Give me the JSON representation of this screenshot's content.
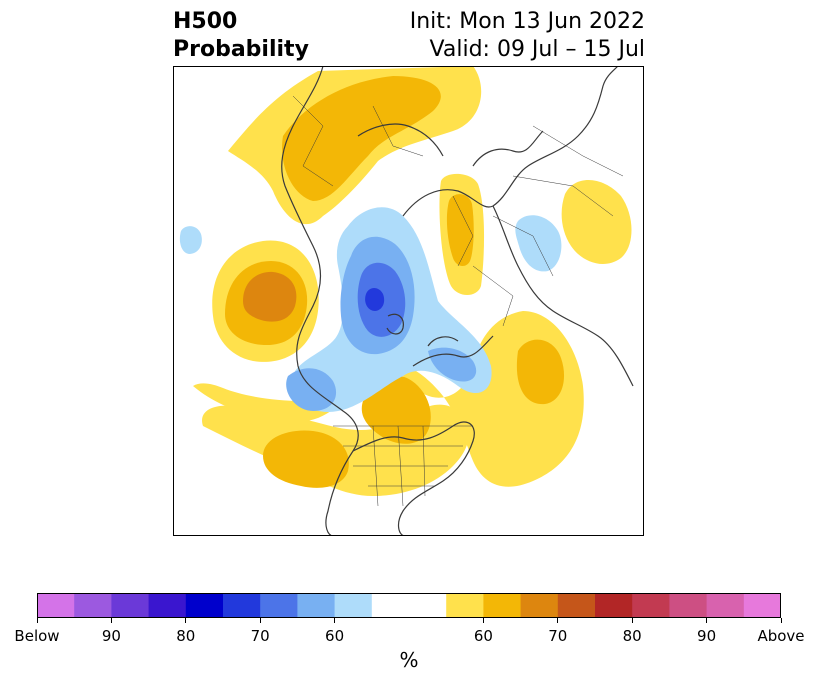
{
  "title": {
    "left_line1": "H500",
    "left_line2": "Probability",
    "right_line1": "Init: Mon 13 Jun 2022",
    "right_line2": "Valid: 09 Jul – 15 Jul"
  },
  "colorbar": {
    "colors": [
      "#d473e8",
      "#9c59e0",
      "#6b39d8",
      "#3a16cf",
      "#0000cc",
      "#2239dc",
      "#4c74e8",
      "#78b0f2",
      "#aedcfa",
      "#ffffff",
      "#ffffff",
      "#ffe14c",
      "#f3b706",
      "#dd860f",
      "#c5561a",
      "#b22626",
      "#c23a51",
      "#cd4f83",
      "#d862ae",
      "#e779dc"
    ],
    "tick_labels": [
      "Below",
      "90",
      "80",
      "70",
      "60",
      "60",
      "70",
      "80",
      "90",
      "Above"
    ],
    "units": "%"
  },
  "map_legend_colors": {
    "below_light": "#aedcfa",
    "below_mid": "#78b0f2",
    "below_strong": "#4c74e8",
    "below_deep": "#2239dc",
    "above_light": "#ffe14c",
    "above_mid": "#f3b706",
    "above_strong": "#dd860f",
    "coastline": "#3a3a3a"
  }
}
